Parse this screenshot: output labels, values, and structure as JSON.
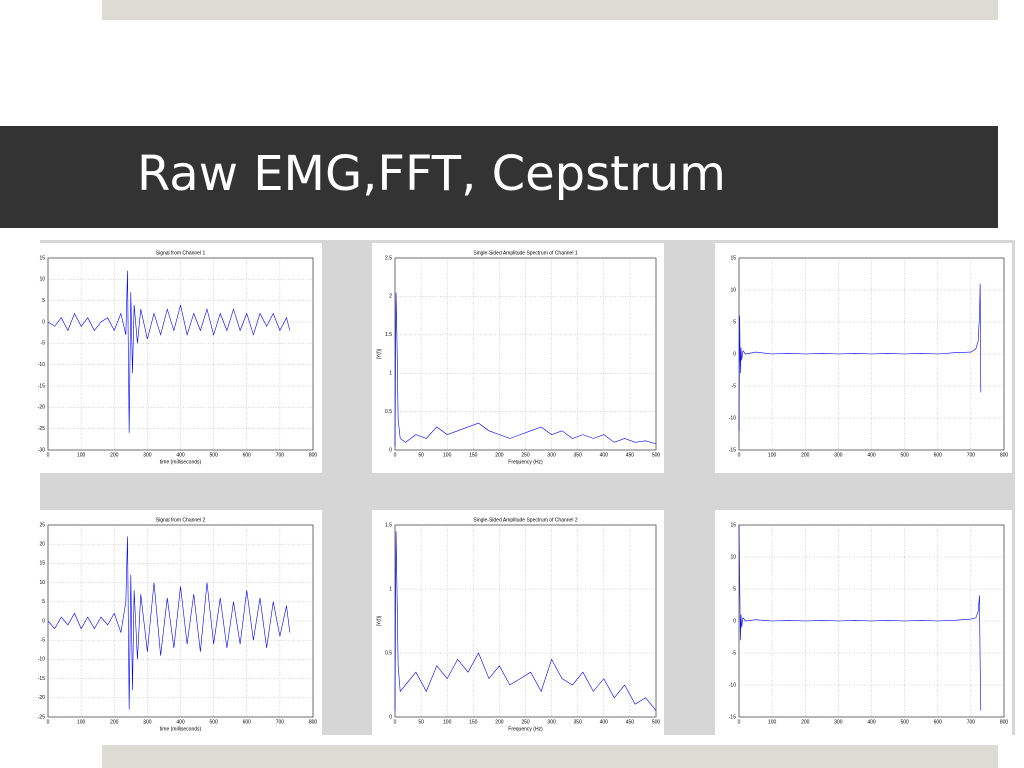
{
  "title": "Raw EMG,FFT, Cepstrum",
  "chart_data": [
    {
      "type": "line",
      "title": "Signal from Channel 1",
      "x_label": "time (milliseconds)",
      "color": "#0000ff",
      "grid": true,
      "xlim": [
        0,
        800
      ],
      "xticks": [
        0,
        100,
        200,
        300,
        400,
        500,
        600,
        700,
        800
      ],
      "ylim": [
        -30,
        15
      ],
      "yticks": [
        -30,
        -25,
        -20,
        -15,
        -10,
        -5,
        0,
        5,
        10,
        15
      ],
      "x": [
        0,
        20,
        40,
        60,
        80,
        100,
        120,
        140,
        160,
        180,
        200,
        220,
        235,
        240,
        245,
        250,
        255,
        260,
        270,
        280,
        300,
        320,
        340,
        360,
        380,
        400,
        420,
        440,
        460,
        480,
        500,
        520,
        540,
        560,
        580,
        600,
        620,
        640,
        660,
        680,
        700,
        720,
        730
      ],
      "values": [
        0,
        -1,
        1,
        -2,
        2,
        -1,
        1,
        -2,
        0,
        1,
        -2,
        2,
        -3,
        12,
        -26,
        7,
        -12,
        4,
        -5,
        3,
        -4,
        2,
        -3,
        3,
        -2,
        4,
        -3,
        2,
        -2,
        3,
        -3,
        2,
        -2,
        3,
        -2,
        2,
        -3,
        2,
        -1,
        2,
        -2,
        1,
        -2
      ]
    },
    {
      "type": "line",
      "title": "Single-Sided Amplitude Spectrum of Channel 1",
      "x_label": "Frequency (Hz)",
      "y_label": "|Y(f)|",
      "color": "#0000ff",
      "grid": true,
      "xlim": [
        0,
        500
      ],
      "xticks": [
        0,
        50,
        100,
        150,
        200,
        250,
        300,
        350,
        400,
        450,
        500
      ],
      "ylim": [
        0,
        2.5
      ],
      "yticks": [
        0,
        0.5,
        1,
        1.5,
        2,
        2.5
      ],
      "x": [
        0,
        2,
        4,
        6,
        10,
        20,
        40,
        60,
        80,
        100,
        120,
        140,
        160,
        180,
        200,
        220,
        240,
        260,
        280,
        300,
        320,
        340,
        360,
        380,
        400,
        420,
        440,
        460,
        480,
        500
      ],
      "values": [
        0.05,
        2.05,
        1.35,
        0.4,
        0.15,
        0.1,
        0.2,
        0.15,
        0.3,
        0.2,
        0.25,
        0.3,
        0.35,
        0.25,
        0.2,
        0.15,
        0.2,
        0.25,
        0.3,
        0.2,
        0.25,
        0.15,
        0.2,
        0.15,
        0.2,
        0.1,
        0.15,
        0.1,
        0.12,
        0.08
      ]
    },
    {
      "type": "line",
      "color": "#0000ff",
      "grid": true,
      "xlim": [
        0,
        800
      ],
      "xticks": [
        0,
        100,
        200,
        300,
        400,
        500,
        600,
        700,
        800
      ],
      "ylim": [
        -15,
        15
      ],
      "yticks": [
        -15,
        -10,
        -5,
        0,
        5,
        10,
        15
      ],
      "x": [
        0,
        2,
        4,
        6,
        8,
        12,
        20,
        50,
        100,
        150,
        200,
        250,
        300,
        350,
        400,
        450,
        500,
        550,
        600,
        650,
        700,
        715,
        722,
        726,
        728,
        730
      ],
      "values": [
        -12,
        6,
        -3,
        1,
        -1,
        0.5,
        0,
        0.3,
        0,
        0.1,
        0,
        0.1,
        0,
        0.1,
        0,
        0.1,
        0,
        0.1,
        0,
        0.2,
        0.3,
        0.8,
        2,
        6,
        11,
        -6
      ]
    },
    {
      "type": "line",
      "title": "Signal from Channel 2",
      "x_label": "time (milliseconds)",
      "color": "#0000ff",
      "grid": true,
      "xlim": [
        0,
        800
      ],
      "xticks": [
        0,
        100,
        200,
        300,
        400,
        500,
        600,
        700,
        800
      ],
      "ylim": [
        -25,
        25
      ],
      "yticks": [
        -25,
        -20,
        -15,
        -10,
        -5,
        0,
        5,
        10,
        15,
        20,
        25
      ],
      "x": [
        0,
        20,
        40,
        60,
        80,
        100,
        120,
        140,
        160,
        180,
        200,
        220,
        235,
        240,
        245,
        250,
        255,
        260,
        270,
        280,
        300,
        320,
        340,
        360,
        380,
        400,
        420,
        440,
        460,
        480,
        500,
        520,
        540,
        560,
        580,
        600,
        620,
        640,
        660,
        680,
        700,
        720,
        730
      ],
      "values": [
        0,
        -2,
        1,
        -1,
        2,
        -2,
        1,
        -2,
        1,
        -1,
        2,
        -3,
        5,
        22,
        -23,
        12,
        -18,
        8,
        -10,
        7,
        -8,
        10,
        -9,
        6,
        -7,
        9,
        -6,
        7,
        -8,
        10,
        -6,
        6,
        -7,
        5,
        -6,
        8,
        -5,
        6,
        -7,
        5,
        -4,
        4,
        -3
      ]
    },
    {
      "type": "line",
      "title": "Single-Sided Amplitude Spectrum of Channel 2",
      "x_label": "Frequency (Hz)",
      "y_label": "|Y(f)|",
      "color": "#0000ff",
      "grid": true,
      "xlim": [
        0,
        500
      ],
      "xticks": [
        0,
        50,
        100,
        150,
        200,
        250,
        300,
        350,
        400,
        450,
        500
      ],
      "ylim": [
        0,
        1.5
      ],
      "yticks": [
        0,
        0.5,
        1,
        1.5
      ],
      "x": [
        0,
        2,
        4,
        6,
        10,
        20,
        40,
        60,
        80,
        100,
        120,
        140,
        160,
        180,
        200,
        220,
        240,
        260,
        280,
        300,
        320,
        340,
        360,
        380,
        400,
        420,
        440,
        460,
        480,
        500
      ],
      "values": [
        0.05,
        1.45,
        0.95,
        0.4,
        0.2,
        0.25,
        0.35,
        0.2,
        0.4,
        0.3,
        0.45,
        0.35,
        0.5,
        0.3,
        0.4,
        0.25,
        0.3,
        0.35,
        0.2,
        0.45,
        0.3,
        0.25,
        0.35,
        0.2,
        0.3,
        0.15,
        0.25,
        0.1,
        0.15,
        0.05
      ]
    },
    {
      "type": "line",
      "color": "#0000ff",
      "grid": true,
      "xlim": [
        0,
        800
      ],
      "xticks": [
        0,
        100,
        200,
        300,
        400,
        500,
        600,
        700,
        800
      ],
      "ylim": [
        -15,
        15
      ],
      "yticks": [
        -15,
        -10,
        -5,
        0,
        5,
        10,
        15
      ],
      "x": [
        0,
        2,
        4,
        6,
        8,
        12,
        20,
        50,
        100,
        150,
        200,
        250,
        300,
        350,
        400,
        450,
        500,
        550,
        600,
        650,
        700,
        715,
        722,
        726,
        728,
        730
      ],
      "values": [
        15,
        7,
        -3,
        1,
        -1,
        0.5,
        0,
        0.2,
        0,
        0.1,
        0,
        0.1,
        0,
        0.1,
        0,
        0.1,
        0,
        0.1,
        0,
        0.1,
        0.3,
        0.5,
        1.5,
        4,
        -7,
        -14
      ]
    }
  ]
}
